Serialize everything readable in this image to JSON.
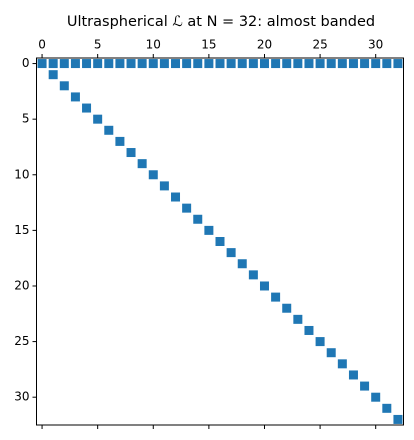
{
  "chart_data": {
    "type": "spy",
    "title": "Ultraspherical ℒ at N = 32: almost banded",
    "x": [
      0,
      1,
      2,
      3,
      4,
      5,
      6,
      7,
      8,
      9,
      10,
      11,
      12,
      13,
      14,
      15,
      16,
      17,
      18,
      19,
      20,
      21,
      22,
      23,
      24,
      25,
      26,
      27,
      28,
      29,
      30,
      31,
      32,
      1,
      2,
      3,
      4,
      5,
      6,
      7,
      8,
      9,
      10,
      11,
      12,
      13,
      14,
      15,
      16,
      17,
      18,
      19,
      20,
      21,
      22,
      23,
      24,
      25,
      26,
      27,
      28,
      29,
      30,
      31,
      32
    ],
    "y": [
      0,
      0,
      0,
      0,
      0,
      0,
      0,
      0,
      0,
      0,
      0,
      0,
      0,
      0,
      0,
      0,
      0,
      0,
      0,
      0,
      0,
      0,
      0,
      0,
      0,
      0,
      0,
      0,
      0,
      0,
      0,
      0,
      0,
      1,
      2,
      3,
      4,
      5,
      6,
      7,
      8,
      9,
      10,
      11,
      12,
      13,
      14,
      15,
      16,
      17,
      18,
      19,
      20,
      21,
      22,
      23,
      24,
      25,
      26,
      27,
      28,
      29,
      30,
      31,
      32
    ],
    "color": "#1f77b4",
    "xlim": [
      -0.5,
      32.5
    ],
    "ylim": [
      32.5,
      -0.5
    ],
    "xticks": [
      0,
      5,
      10,
      15,
      20,
      25,
      30
    ],
    "yticks": [
      0,
      5,
      10,
      15,
      20,
      25,
      30
    ]
  }
}
